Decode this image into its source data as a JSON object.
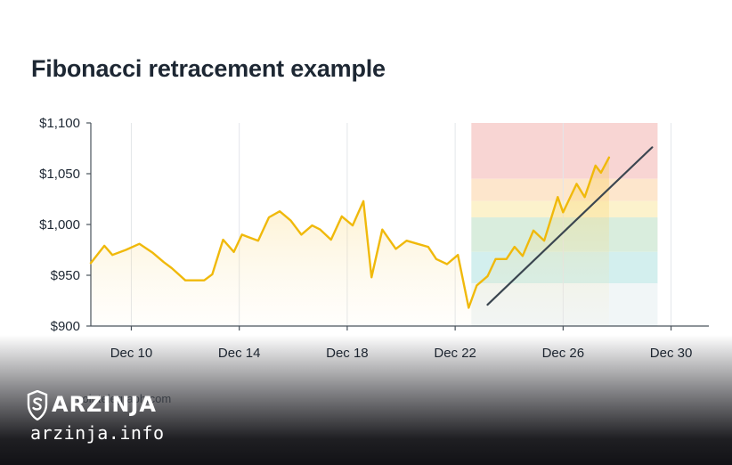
{
  "chart_data": {
    "type": "line",
    "title": "Fibonacci retracement example",
    "source": "cointelegraph.com",
    "xlabel": "",
    "ylabel": "",
    "x_ticks": [
      "Dec 10",
      "Dec 14",
      "Dec 18",
      "Dec 22",
      "Dec 26",
      "Dec 30"
    ],
    "x_tick_days": [
      10,
      14,
      18,
      22,
      26,
      30
    ],
    "y_ticks": [
      "$900",
      "$950",
      "$1,000",
      "$1,050",
      "$1,100"
    ],
    "y_tick_values": [
      900,
      950,
      1000,
      1050,
      1100
    ],
    "ylim": [
      900,
      1100
    ],
    "xlim": [
      8.5,
      31.4
    ],
    "grid": "vertical",
    "series": [
      {
        "color": "#f0b90b",
        "x": [
          8.5,
          9.0,
          9.3,
          9.8,
          10.3,
          10.8,
          11.2,
          11.5,
          12.0,
          12.4,
          12.7,
          13.0,
          13.4,
          13.8,
          14.1,
          14.3,
          14.7,
          15.1,
          15.5,
          15.9,
          16.3,
          16.7,
          17.0,
          17.4,
          17.8,
          18.2,
          18.6,
          18.9,
          19.3,
          19.8,
          20.2,
          20.6,
          21.0,
          21.3,
          21.7,
          22.1,
          22.5,
          22.8,
          23.2,
          23.5,
          23.9,
          24.2,
          24.5,
          24.9,
          25.3,
          25.8,
          26.0,
          26.5,
          26.8,
          27.2,
          27.4,
          27.7
        ],
        "values": [
          962,
          979,
          970,
          975,
          981,
          972,
          963,
          957,
          945,
          945,
          945,
          951,
          985,
          973,
          990,
          988,
          984,
          1007,
          1013,
          1004,
          990,
          999,
          995,
          985,
          1008,
          999,
          1023,
          948,
          995,
          976,
          984,
          981,
          978,
          966,
          961,
          970,
          918,
          940,
          949,
          966,
          966,
          978,
          969,
          994,
          984,
          1027,
          1012,
          1040,
          1027,
          1058,
          1051,
          1066
        ]
      }
    ],
    "trend_line": {
      "x": [
        23.2,
        29.3
      ],
      "values": [
        921,
        1076
      ]
    },
    "fibonacci_zones": {
      "x_start": 22.6,
      "x_end": 29.5,
      "bands": [
        {
          "from": 1045,
          "to": 1100,
          "color": "#f8d5d3"
        },
        {
          "from": 1023,
          "to": 1045,
          "color": "#fde6cc"
        },
        {
          "from": 1007,
          "to": 1023,
          "color": "#fcf2cc"
        },
        {
          "from": 973,
          "to": 1007,
          "color": "#d9eddd"
        },
        {
          "from": 942,
          "to": 973,
          "color": "#d3efee"
        },
        {
          "from": 900,
          "to": 942,
          "color": "#f1f6f7"
        }
      ]
    }
  },
  "watermark": {
    "brand": "ARZINJA",
    "url": "arzinja.info"
  }
}
